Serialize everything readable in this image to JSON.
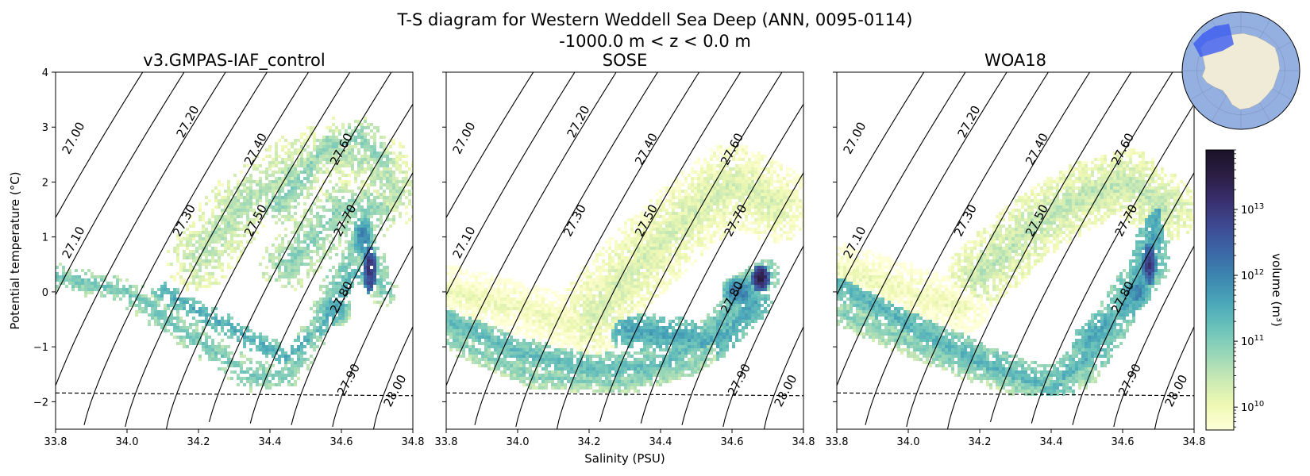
{
  "figure": {
    "title_line1": "T-S diagram for Western Weddell Sea Deep (ANN, 0095-0114)",
    "title_line2": "-1000.0 m < z < 0.0 m",
    "shared_xlabel": "Salinity (PSU)",
    "shared_ylabel": "Potential temperature (°C)"
  },
  "colorbar": {
    "label": "volume (m³)",
    "scale": "log",
    "range": [
      4500000000.0,
      80000000000000.0
    ],
    "ticks": [
      {
        "value": 10000000000.0,
        "base": "10",
        "exp": "10"
      },
      {
        "value": 100000000000.0,
        "base": "10",
        "exp": "11"
      },
      {
        "value": 1000000000000.0,
        "base": "10",
        "exp": "12"
      },
      {
        "value": 10000000000000.0,
        "base": "10",
        "exp": "13"
      }
    ],
    "colors": [
      "#ffffd9",
      "#eef8b3",
      "#c9e9b4",
      "#98d6b8",
      "#6bc2ba",
      "#4aa7b9",
      "#3d87b0",
      "#3b67a5",
      "#3e4a92",
      "#3a2f6e",
      "#2b1e44",
      "#1a1228"
    ]
  },
  "inset_map": {
    "ocean_color": "#94b0e0",
    "land_color": "#efebd6",
    "region_color": "#3b5bf0"
  },
  "chart_data": [
    {
      "type": "heatmap",
      "title": "v3.GMPAS-IAF_control",
      "xlabel": "",
      "ylabel": "Potential temperature (°C)",
      "xlim": [
        33.8,
        34.8
      ],
      "ylim": [
        -2.5,
        4
      ],
      "xticks": [
        "33.8",
        "34.0",
        "34.2",
        "34.4",
        "34.6",
        "34.8"
      ],
      "yticks": [
        "−2",
        "−1",
        "0",
        "1",
        "2",
        "3",
        "4"
      ],
      "freezing_line": [
        [
          33.8,
          -1.84
        ],
        [
          34.8,
          -1.89
        ]
      ],
      "density_contours": [
        27.0,
        27.1,
        27.2,
        27.3,
        27.4,
        27.5,
        27.6,
        27.7,
        27.8,
        27.9,
        28.0
      ],
      "density_labels": [
        "27.00",
        "27.10",
        "27.20",
        "27.30",
        "27.40",
        "27.50",
        "27.60",
        "27.70",
        "27.80",
        "27.90",
        "28.00"
      ],
      "bands": [
        {
          "points": [
            [
              33.8,
              0.3
            ],
            [
              34.0,
              0.0
            ],
            [
              34.2,
              -0.9
            ],
            [
              34.35,
              -1.55
            ],
            [
              34.45,
              -1.5
            ],
            [
              34.52,
              -0.8
            ],
            [
              34.6,
              0.3
            ],
            [
              34.66,
              1.0
            ],
            [
              34.7,
              0.4
            ],
            [
              34.72,
              0.0
            ]
          ],
          "width": 0.26,
          "logv": 11.1
        },
        {
          "points": [
            [
              34.1,
              0.0
            ],
            [
              34.3,
              -0.7
            ],
            [
              34.45,
              -1.2
            ],
            [
              34.55,
              -0.6
            ],
            [
              34.63,
              0.3
            ],
            [
              34.69,
              0.4
            ]
          ],
          "width": 0.2,
          "logv": 11.5
        },
        {
          "points": [
            [
              34.2,
              0.6
            ],
            [
              34.32,
              1.6
            ],
            [
              34.48,
              2.3
            ],
            [
              34.6,
              2.6
            ],
            [
              34.7,
              2.3
            ],
            [
              34.75,
              1.8
            ]
          ],
          "width": 0.6,
          "logv": 10.6
        },
        {
          "points": [
            [
              34.42,
              1.6
            ],
            [
              34.55,
              2.6
            ],
            [
              34.65,
              2.8
            ],
            [
              34.72,
              2.3
            ]
          ],
          "width": 0.4,
          "logv": 10.9
        },
        {
          "points": [
            [
              34.45,
              0.5
            ],
            [
              34.6,
              1.5
            ],
            [
              34.7,
              1.5
            ]
          ],
          "width": 0.5,
          "logv": 10.9
        }
      ],
      "peaks": [
        {
          "s": 34.68,
          "t": 0.4,
          "ds": 0.02,
          "dt": 0.45,
          "logv": 13.1
        },
        {
          "s": 34.66,
          "t": 1.0,
          "ds": 0.03,
          "dt": 0.4,
          "logv": 12.0
        },
        {
          "s": 34.58,
          "t": -0.3,
          "ds": 0.05,
          "dt": 0.35,
          "logv": 11.6
        }
      ],
      "sparse": true
    },
    {
      "type": "heatmap",
      "title": "SOSE",
      "xlabel": "Salinity (PSU)",
      "ylabel": "",
      "xlim": [
        33.8,
        34.8
      ],
      "ylim": [
        -2.5,
        4
      ],
      "xticks": [
        "33.8",
        "34.0",
        "34.2",
        "34.4",
        "34.6",
        "34.8"
      ],
      "yticks": [],
      "freezing_line": [
        [
          33.8,
          -1.84
        ],
        [
          34.8,
          -1.89
        ]
      ],
      "density_contours": [
        27.0,
        27.1,
        27.2,
        27.3,
        27.4,
        27.5,
        27.6,
        27.7,
        27.8,
        27.9,
        28.0
      ],
      "density_labels": [
        "27.00",
        "27.10",
        "27.20",
        "27.30",
        "27.40",
        "27.50",
        "27.60",
        "27.70",
        "27.80",
        "27.90",
        "28.00"
      ],
      "bands": [
        {
          "points": [
            [
              33.8,
              -0.5
            ],
            [
              34.0,
              -1.1
            ],
            [
              34.2,
              -1.4
            ],
            [
              34.4,
              -1.35
            ],
            [
              34.55,
              -0.7
            ],
            [
              34.65,
              0.1
            ],
            [
              34.69,
              0.3
            ]
          ],
          "width": 0.3,
          "logv": 11.3
        },
        {
          "points": [
            [
              33.82,
              -0.9
            ],
            [
              34.05,
              -1.55
            ],
            [
              34.3,
              -1.65
            ],
            [
              34.5,
              -1.3
            ],
            [
              34.62,
              -0.4
            ]
          ],
          "width": 0.22,
          "logv": 11.0
        },
        {
          "points": [
            [
              34.2,
              -0.5
            ],
            [
              34.35,
              0.6
            ],
            [
              34.5,
              1.5
            ],
            [
              34.6,
              2.0
            ],
            [
              34.72,
              1.6
            ]
          ],
          "width": 0.7,
          "logv": 10.3
        },
        {
          "points": [
            [
              33.8,
              0.0
            ],
            [
              34.0,
              -0.3
            ],
            [
              34.15,
              -0.6
            ]
          ],
          "width": 0.5,
          "logv": 10.0
        },
        {
          "points": [
            [
              34.3,
              -0.7
            ],
            [
              34.55,
              -0.9
            ],
            [
              34.66,
              -0.2
            ]
          ],
          "width": 0.35,
          "logv": 11.6
        }
      ],
      "peaks": [
        {
          "s": 34.68,
          "t": 0.25,
          "ds": 0.025,
          "dt": 0.25,
          "logv": 13.4
        },
        {
          "s": 34.62,
          "t": 0.0,
          "ds": 0.05,
          "dt": 0.3,
          "logv": 12.1
        }
      ],
      "sparse": false
    },
    {
      "type": "heatmap",
      "title": "WOA18",
      "xlabel": "",
      "ylabel": "",
      "xlim": [
        33.8,
        34.8
      ],
      "ylim": [
        -2.5,
        4
      ],
      "xticks": [
        "33.8",
        "34.0",
        "34.2",
        "34.4",
        "34.6",
        "34.8"
      ],
      "yticks": [],
      "freezing_line": [
        [
          33.8,
          -1.84
        ],
        [
          34.8,
          -1.89
        ]
      ],
      "density_contours": [
        27.0,
        27.1,
        27.2,
        27.3,
        27.4,
        27.5,
        27.6,
        27.7,
        27.8,
        27.9,
        28.0
      ],
      "density_labels": [
        "27.00",
        "27.10",
        "27.20",
        "27.30",
        "27.40",
        "27.50",
        "27.60",
        "27.70",
        "27.80",
        "27.90",
        "28.00"
      ],
      "bands": [
        {
          "points": [
            [
              33.8,
              0.2
            ],
            [
              34.0,
              -0.6
            ],
            [
              34.2,
              -1.3
            ],
            [
              34.4,
              -1.75
            ],
            [
              34.52,
              -1.1
            ],
            [
              34.62,
              0.0
            ],
            [
              34.68,
              0.5
            ]
          ],
          "width": 0.35,
          "logv": 11.4
        },
        {
          "points": [
            [
              33.82,
              -0.4
            ],
            [
              34.1,
              -1.2
            ],
            [
              34.35,
              -1.75
            ],
            [
              34.5,
              -1.5
            ]
          ],
          "width": 0.25,
          "logv": 11.0
        },
        {
          "points": [
            [
              34.2,
              0.3
            ],
            [
              34.35,
              1.2
            ],
            [
              34.5,
              1.8
            ],
            [
              34.62,
              2.0
            ],
            [
              34.72,
              1.5
            ]
          ],
          "width": 0.6,
          "logv": 10.5
        },
        {
          "points": [
            [
              33.8,
              0.4
            ],
            [
              34.0,
              0.0
            ],
            [
              34.15,
              -0.3
            ]
          ],
          "width": 0.5,
          "logv": 10.0
        },
        {
          "points": [
            [
              34.5,
              -0.9
            ],
            [
              34.62,
              -0.2
            ],
            [
              34.68,
              0.8
            ],
            [
              34.7,
              1.5
            ]
          ],
          "width": 0.3,
          "logv": 11.6
        }
      ],
      "peaks": [
        {
          "s": 34.675,
          "t": 0.5,
          "ds": 0.02,
          "dt": 0.4,
          "logv": 13.0
        },
        {
          "s": 34.64,
          "t": 0.0,
          "ds": 0.04,
          "dt": 0.35,
          "logv": 12.0
        }
      ],
      "sparse": false
    }
  ]
}
